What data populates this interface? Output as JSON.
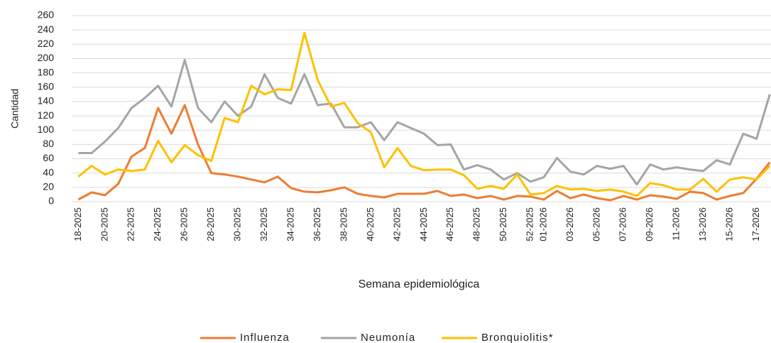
{
  "chart_data": {
    "type": "line",
    "x_label": "Semana epidemiológica",
    "y_label": "Cantidad",
    "categories": [
      "18-2025",
      null,
      "20-2025",
      null,
      "22-2025",
      null,
      "24-2025",
      null,
      "26-2025",
      null,
      "28-2025",
      null,
      "30-2025",
      null,
      "32-2025",
      null,
      "34-2025",
      null,
      "36-2025",
      null,
      "38-2025",
      null,
      "40-2025",
      null,
      "42-2025",
      null,
      "44-2025",
      null,
      "46-2025",
      null,
      "48-2025",
      null,
      "50-2025",
      null,
      "52-2025",
      "01-2026",
      null,
      "03-2026",
      null,
      "05-2026",
      null,
      "07-2026",
      null,
      "09-2026",
      null,
      "11-2026",
      null,
      "13-2026",
      null,
      "15-2026",
      null,
      "17-2026",
      null
    ],
    "series": [
      {
        "name": "Influenza",
        "color": "#ed7d31",
        "values": [
          3,
          13,
          9,
          25,
          63,
          75,
          131,
          95,
          135,
          80,
          40,
          38,
          35,
          31,
          27,
          35,
          19,
          14,
          13,
          16,
          20,
          11,
          8,
          6,
          11,
          11,
          11,
          15,
          8,
          10,
          5,
          8,
          3,
          8,
          7,
          3,
          15,
          5,
          10,
          5,
          2,
          8,
          3,
          9,
          7,
          4,
          14,
          12,
          3,
          8,
          12,
          32,
          55
        ]
      },
      {
        "name": "Neumonía",
        "color": "#a5a5a5",
        "values": [
          68,
          68,
          84,
          103,
          131,
          145,
          162,
          133,
          198,
          131,
          111,
          140,
          120,
          133,
          178,
          145,
          137,
          178,
          135,
          137,
          104,
          104,
          111,
          86,
          111,
          103,
          95,
          79,
          80,
          45,
          51,
          45,
          31,
          40,
          28,
          34,
          61,
          42,
          38,
          50,
          46,
          50,
          24,
          52,
          45,
          48,
          45,
          43,
          58,
          52,
          95,
          88,
          150
        ]
      },
      {
        "name": "Bronquiolitis*",
        "color": "#ffc000",
        "values": [
          35,
          50,
          38,
          45,
          43,
          45,
          85,
          55,
          79,
          65,
          57,
          117,
          111,
          162,
          150,
          157,
          156,
          236,
          170,
          133,
          138,
          110,
          97,
          48,
          75,
          50,
          44,
          45,
          45,
          37,
          18,
          22,
          18,
          38,
          10,
          12,
          22,
          17,
          18,
          15,
          17,
          14,
          8,
          26,
          23,
          17,
          17,
          32,
          14,
          31,
          34,
          31,
          50
        ]
      }
    ],
    "ylim": [
      0,
      260
    ],
    "yticks": [
      0,
      20,
      40,
      60,
      80,
      100,
      120,
      140,
      160,
      180,
      200,
      220,
      240,
      260
    ],
    "grid": true,
    "legend": "bottom"
  }
}
